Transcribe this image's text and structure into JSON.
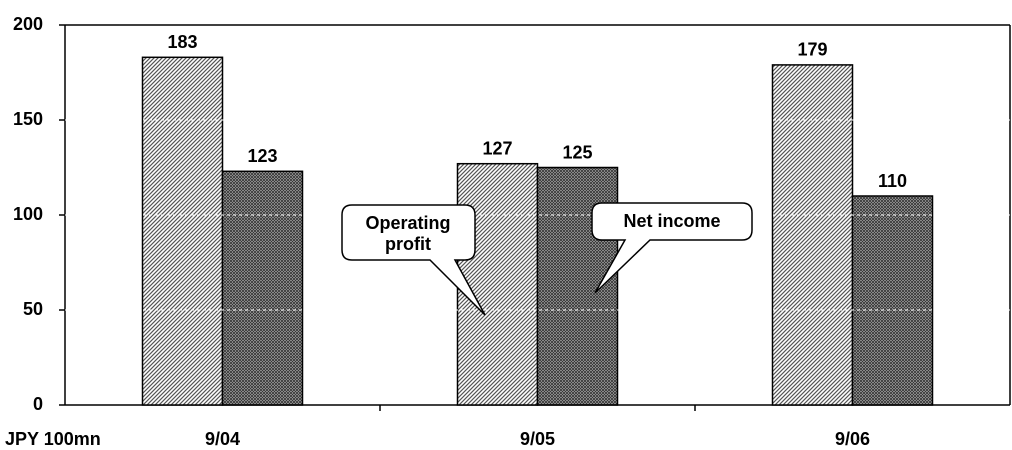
{
  "chart_data": {
    "type": "bar",
    "y_label": "JPY 100mn",
    "categories": [
      "9/04",
      "9/05",
      "9/06"
    ],
    "series": [
      {
        "name": "Operating profit",
        "color": "#555555",
        "values": [
          183,
          127,
          179
        ]
      },
      {
        "name": "Net income",
        "color": "#333333",
        "values": [
          123,
          125,
          110
        ]
      }
    ],
    "ylim": [
      0,
      200
    ],
    "yticks": [
      0,
      50,
      100,
      150,
      200
    ],
    "grid": true
  }
}
